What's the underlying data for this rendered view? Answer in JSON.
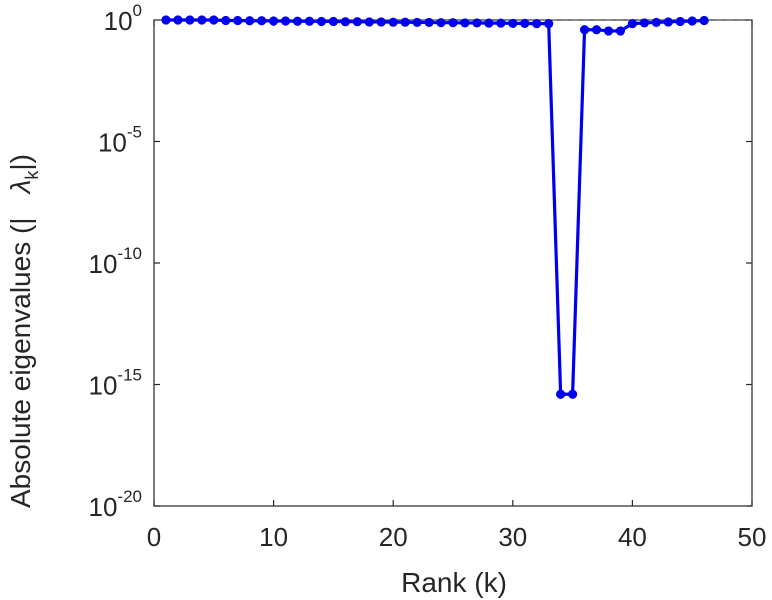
{
  "chart_data": {
    "type": "line",
    "xlabel": "Rank (k)",
    "ylabel": "Absolute eigenvalues (|",
    "ylabel_symbol": "λ",
    "ylabel_subscript": "k",
    "ylabel_close": "|)",
    "yscale": "log",
    "xlim": [
      0,
      50
    ],
    "ylim_exponents": [
      -20,
      0
    ],
    "xticks": [
      "0",
      "10",
      "20",
      "30",
      "40",
      "50"
    ],
    "yticks": [
      {
        "base": "10",
        "exp": "0",
        "value_exp": 0
      },
      {
        "base": "10",
        "exp": "-5",
        "value_exp": -5
      },
      {
        "base": "10",
        "exp": "-10",
        "value_exp": -10
      },
      {
        "base": "10",
        "exp": "-15",
        "value_exp": -15
      },
      {
        "base": "10",
        "exp": "-20",
        "value_exp": -20
      }
    ],
    "grid": false,
    "reference_line": {
      "value_exp": 0,
      "style": "dashed"
    },
    "series": [
      {
        "color": "#0000ee",
        "marker": "circle",
        "x": [
          1,
          2,
          3,
          4,
          5,
          6,
          7,
          8,
          9,
          10,
          11,
          12,
          13,
          14,
          15,
          16,
          17,
          18,
          19,
          20,
          21,
          22,
          23,
          24,
          25,
          26,
          27,
          28,
          29,
          30,
          31,
          32,
          33,
          34,
          35,
          36,
          37,
          38,
          39,
          40,
          41,
          42,
          43,
          44,
          45,
          46
        ],
        "log10_y": [
          0,
          0,
          0,
          0,
          0,
          -0.02,
          -0.02,
          -0.03,
          -0.03,
          -0.04,
          -0.04,
          -0.05,
          -0.05,
          -0.06,
          -0.06,
          -0.07,
          -0.07,
          -0.08,
          -0.08,
          -0.09,
          -0.09,
          -0.1,
          -0.1,
          -0.11,
          -0.11,
          -0.12,
          -0.12,
          -0.13,
          -0.13,
          -0.14,
          -0.14,
          -0.15,
          -0.15,
          -15.4,
          -15.4,
          -0.4,
          -0.4,
          -0.45,
          -0.45,
          -0.15,
          -0.12,
          -0.1,
          -0.08,
          -0.06,
          -0.04,
          -0.02
        ]
      }
    ]
  }
}
